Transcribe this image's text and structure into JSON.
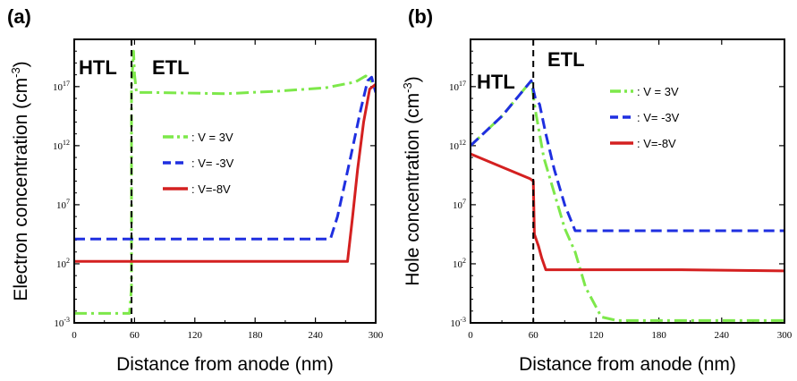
{
  "colors": {
    "v3": "#7de84a",
    "vm3": "#1f2fe0",
    "vm8": "#d42020"
  },
  "chart_data": [
    {
      "type": "line",
      "panel_label": "(a)",
      "regions": [
        "HTL",
        "ETL"
      ],
      "xlabel": "Distance from anode (nm)",
      "ylabel": "Electron concentration (cm",
      "ylabel_exp": "-3",
      "ylabel_close": ")",
      "xlim": [
        0,
        300
      ],
      "ylim_log10": [
        -3,
        21
      ],
      "xticks": [
        "0",
        "60",
        "120",
        "180",
        "240",
        "300"
      ],
      "yticks": [
        {
          "base": "10",
          "exp": "-3",
          "log": -3
        },
        {
          "base": "10",
          "exp": "2",
          "log": 2
        },
        {
          "base": "10",
          "exp": "7",
          "log": 7
        },
        {
          "base": "10",
          "exp": "12",
          "log": 12
        },
        {
          "base": "10",
          "exp": "17",
          "log": 17
        }
      ],
      "interface_x": 57,
      "series": [
        {
          "name": ": V = 3V",
          "style": "dashdot",
          "color": "v3",
          "points": [
            [
              0,
              -2.2
            ],
            [
              55,
              -2.2
            ],
            [
              57,
              0
            ],
            [
              57,
              17
            ],
            [
              59,
              20
            ],
            [
              60,
              18
            ],
            [
              62,
              16.5
            ],
            [
              80,
              16.5
            ],
            [
              150,
              16.4
            ],
            [
              200,
              16.6
            ],
            [
              250,
              16.9
            ],
            [
              280,
              17.4
            ],
            [
              290,
              17.9
            ],
            [
              295,
              17.5
            ],
            [
              300,
              17.0
            ]
          ]
        },
        {
          "name": ": V= -3V",
          "style": "dashed",
          "color": "vm3",
          "points": [
            [
              0,
              4.1
            ],
            [
              150,
              4.1
            ],
            [
              255,
              4.1
            ],
            [
              262,
              6
            ],
            [
              275,
              11
            ],
            [
              285,
              15
            ],
            [
              292,
              17.5
            ],
            [
              296,
              17.8
            ],
            [
              300,
              16.5
            ]
          ]
        },
        {
          "name": ": V=-8V",
          "style": "solid",
          "color": "vm8",
          "points": [
            [
              0,
              2.2
            ],
            [
              200,
              2.2
            ],
            [
              272,
              2.2
            ],
            [
              277,
              6
            ],
            [
              282,
              10
            ],
            [
              288,
              14
            ],
            [
              294,
              16.8
            ],
            [
              300,
              17.2
            ]
          ]
        }
      ]
    },
    {
      "type": "line",
      "panel_label": "(b)",
      "regions": [
        "HTL",
        "ETL"
      ],
      "xlabel": "Distance from anode (nm)",
      "ylabel": "Hole concentration (cm",
      "ylabel_exp": "-3",
      "ylabel_close": ")",
      "xlim": [
        0,
        300
      ],
      "ylim_log10": [
        -3,
        21
      ],
      "xticks": [
        "0",
        "60",
        "120",
        "180",
        "240",
        "300"
      ],
      "yticks": [
        {
          "base": "10",
          "exp": "-3",
          "log": -3
        },
        {
          "base": "10",
          "exp": "2",
          "log": 2
        },
        {
          "base": "10",
          "exp": "7",
          "log": 7
        },
        {
          "base": "10",
          "exp": "12",
          "log": 12
        },
        {
          "base": "10",
          "exp": "17",
          "log": 17
        }
      ],
      "interface_x": 60,
      "series": [
        {
          "name": ": V = 3V",
          "style": "dashdot",
          "color": "v3",
          "points": [
            [
              0,
              12
            ],
            [
              30,
              14.5
            ],
            [
              58,
              17.5
            ],
            [
              62,
              15
            ],
            [
              70,
              11
            ],
            [
              80,
              8
            ],
            [
              90,
              5
            ],
            [
              100,
              3
            ],
            [
              110,
              0
            ],
            [
              125,
              -2.5
            ],
            [
              140,
              -2.8
            ],
            [
              200,
              -2.8
            ],
            [
              300,
              -2.8
            ]
          ]
        },
        {
          "name": ": V= -3V",
          "style": "dashed",
          "color": "vm3",
          "points": [
            [
              0,
              12
            ],
            [
              30,
              14.5
            ],
            [
              58,
              17.5
            ],
            [
              62,
              16
            ],
            [
              66,
              15.5
            ],
            [
              72,
              13
            ],
            [
              80,
              10
            ],
            [
              90,
              7
            ],
            [
              100,
              4.8
            ],
            [
              150,
              4.8
            ],
            [
              300,
              4.8
            ]
          ]
        },
        {
          "name": ": V=-8V",
          "style": "solid",
          "color": "vm8",
          "points": [
            [
              0,
              11.3
            ],
            [
              30,
              10.2
            ],
            [
              57,
              9.2
            ],
            [
              60,
              9
            ],
            [
              61,
              4.5
            ],
            [
              65,
              3.5
            ],
            [
              68,
              2.5
            ],
            [
              72,
              1.5
            ],
            [
              100,
              1.5
            ],
            [
              200,
              1.5
            ],
            [
              300,
              1.4
            ]
          ]
        }
      ]
    }
  ]
}
